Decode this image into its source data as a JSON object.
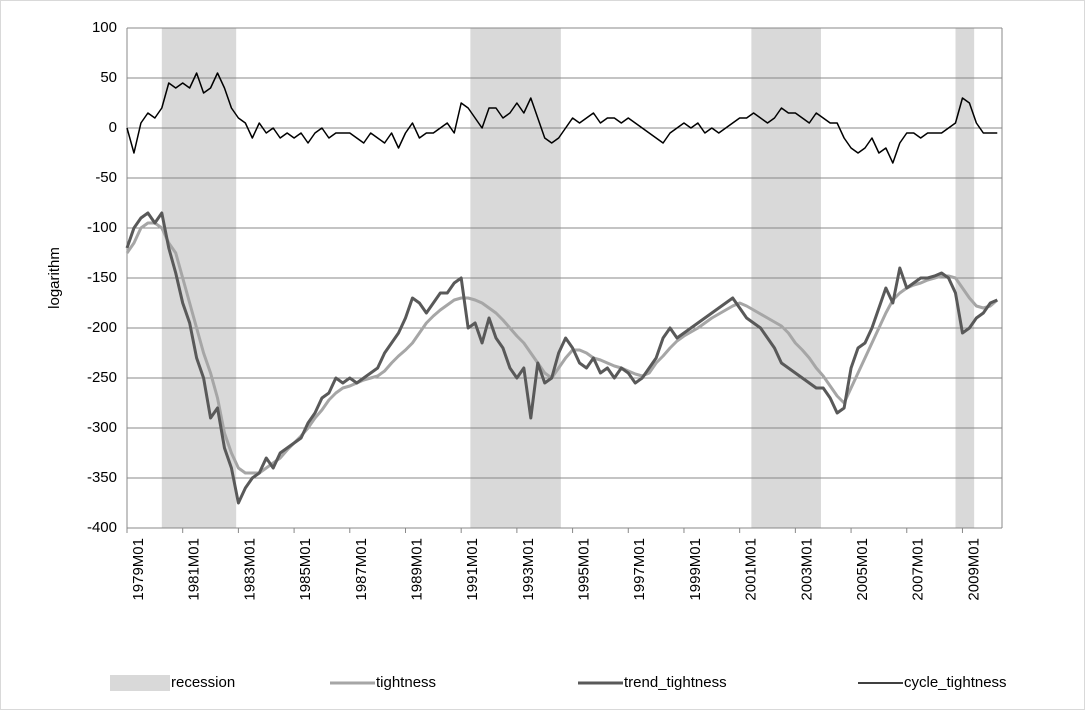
{
  "chart_data": {
    "type": "line",
    "y_label": "logarithm",
    "xlim": [
      1979,
      2010.42
    ],
    "ylim": [
      -400,
      100
    ],
    "yticks": [
      -400,
      -350,
      -300,
      -250,
      -200,
      -150,
      -100,
      -50,
      0,
      50,
      100
    ],
    "xticks": [
      {
        "value": 1979,
        "label": "1979M01"
      },
      {
        "value": 1981,
        "label": "1981M01"
      },
      {
        "value": 1983,
        "label": "1983M01"
      },
      {
        "value": 1985,
        "label": "1985M01"
      },
      {
        "value": 1987,
        "label": "1987M01"
      },
      {
        "value": 1989,
        "label": "1989M01"
      },
      {
        "value": 1991,
        "label": "1991M01"
      },
      {
        "value": 1993,
        "label": "1993M01"
      },
      {
        "value": 1995,
        "label": "1995M01"
      },
      {
        "value": 1997,
        "label": "1997M01"
      },
      {
        "value": 1999,
        "label": "1999M01"
      },
      {
        "value": 2001,
        "label": "2001M01"
      },
      {
        "value": 2003,
        "label": "2003M01"
      },
      {
        "value": 2005,
        "label": "2005M01"
      },
      {
        "value": 2007,
        "label": "2007M01"
      },
      {
        "value": 2009,
        "label": "2009M01"
      }
    ],
    "grid": true,
    "legend": "bottom",
    "recession": {
      "name": "recession",
      "color": "#d9d9d9",
      "periods": [
        [
          1980.25,
          1982.92
        ],
        [
          1991.33,
          1994.58
        ],
        [
          2001.42,
          2003.92
        ],
        [
          2008.75,
          2009.42
        ]
      ]
    },
    "x": [
      1979,
      1979.25,
      1979.5,
      1979.75,
      1980,
      1980.25,
      1980.5,
      1980.75,
      1981,
      1981.25,
      1981.5,
      1981.75,
      1982,
      1982.25,
      1982.5,
      1982.75,
      1983,
      1983.25,
      1983.5,
      1983.75,
      1984,
      1984.25,
      1984.5,
      1984.75,
      1985,
      1985.25,
      1985.5,
      1985.75,
      1986,
      1986.25,
      1986.5,
      1986.75,
      1987,
      1987.25,
      1987.5,
      1987.75,
      1988,
      1988.25,
      1988.5,
      1988.75,
      1989,
      1989.25,
      1989.5,
      1989.75,
      1990,
      1990.25,
      1990.5,
      1990.75,
      1991,
      1991.25,
      1991.5,
      1991.75,
      1992,
      1992.25,
      1992.5,
      1992.75,
      1993,
      1993.25,
      1993.5,
      1993.75,
      1994,
      1994.25,
      1994.5,
      1994.75,
      1995,
      1995.25,
      1995.5,
      1995.75,
      1996,
      1996.25,
      1996.5,
      1996.75,
      1997,
      1997.25,
      1997.5,
      1997.75,
      1998,
      1998.25,
      1998.5,
      1998.75,
      1999,
      1999.25,
      1999.5,
      1999.75,
      2000,
      2000.25,
      2000.5,
      2000.75,
      2001,
      2001.25,
      2001.5,
      2001.75,
      2002,
      2002.25,
      2002.5,
      2002.75,
      2003,
      2003.25,
      2003.5,
      2003.75,
      2004,
      2004.25,
      2004.5,
      2004.75,
      2005,
      2005.25,
      2005.5,
      2005.75,
      2006,
      2006.25,
      2006.5,
      2006.75,
      2007,
      2007.25,
      2007.5,
      2007.75,
      2008,
      2008.25,
      2008.5,
      2008.75,
      2009,
      2009.25,
      2009.5,
      2009.75,
      2010,
      2010.25
    ],
    "series": [
      {
        "name": "tightness",
        "color": "#a6a6a6",
        "width": 3,
        "values": [
          -125,
          -115,
          -100,
          -95,
          -95,
          -100,
          -115,
          -125,
          -150,
          -175,
          -200,
          -225,
          -245,
          -270,
          -305,
          -325,
          -340,
          -345,
          -345,
          -345,
          -340,
          -335,
          -330,
          -322,
          -315,
          -308,
          -300,
          -290,
          -282,
          -272,
          -265,
          -260,
          -258,
          -255,
          -252,
          -250,
          -248,
          -243,
          -235,
          -228,
          -222,
          -215,
          -205,
          -195,
          -188,
          -182,
          -177,
          -172,
          -170,
          -170,
          -172,
          -175,
          -180,
          -185,
          -192,
          -200,
          -208,
          -215,
          -225,
          -235,
          -245,
          -250,
          -240,
          -230,
          -222,
          -222,
          -225,
          -230,
          -232,
          -235,
          -238,
          -240,
          -243,
          -246,
          -248,
          -245,
          -235,
          -228,
          -220,
          -213,
          -208,
          -204,
          -200,
          -195,
          -190,
          -186,
          -182,
          -178,
          -175,
          -178,
          -182,
          -186,
          -190,
          -194,
          -198,
          -205,
          -215,
          -222,
          -230,
          -240,
          -248,
          -258,
          -268,
          -275,
          -260,
          -245,
          -230,
          -215,
          -200,
          -185,
          -172,
          -165,
          -160,
          -157,
          -155,
          -152,
          -150,
          -148,
          -148,
          -150,
          -160,
          -170,
          -178,
          -180,
          -178,
          -172
        ]
      },
      {
        "name": "trend_tightness",
        "color": "#595959",
        "width": 3,
        "values": [
          -120,
          -100,
          -90,
          -85,
          -95,
          -85,
          -120,
          -145,
          -175,
          -195,
          -230,
          -250,
          -290,
          -280,
          -320,
          -340,
          -375,
          -360,
          -350,
          -345,
          -330,
          -340,
          -325,
          -320,
          -315,
          -310,
          -295,
          -285,
          -270,
          -265,
          -250,
          -255,
          -250,
          -255,
          -250,
          -245,
          -240,
          -225,
          -215,
          -205,
          -190,
          -170,
          -175,
          -185,
          -175,
          -165,
          -165,
          -155,
          -150,
          -200,
          -195,
          -215,
          -190,
          -210,
          -220,
          -240,
          -250,
          -240,
          -290,
          -235,
          -255,
          -250,
          -225,
          -210,
          -220,
          -235,
          -240,
          -230,
          -245,
          -240,
          -250,
          -240,
          -245,
          -255,
          -250,
          -240,
          -230,
          -210,
          -200,
          -210,
          -205,
          -200,
          -195,
          -190,
          -185,
          -180,
          -175,
          -170,
          -180,
          -190,
          -195,
          -200,
          -210,
          -220,
          -235,
          -240,
          -245,
          -250,
          -255,
          -260,
          -260,
          -270,
          -285,
          -280,
          -240,
          -220,
          -215,
          -200,
          -180,
          -160,
          -175,
          -140,
          -160,
          -155,
          -150,
          -150,
          -148,
          -145,
          -150,
          -165,
          -205,
          -200,
          -190,
          -185,
          -175,
          -172
        ]
      },
      {
        "name": "cycle_tightness",
        "color": "#000000",
        "width": 1.5,
        "values": [
          0,
          -25,
          5,
          15,
          10,
          20,
          45,
          40,
          45,
          40,
          55,
          35,
          40,
          55,
          40,
          20,
          10,
          5,
          -10,
          5,
          -5,
          0,
          -10,
          -5,
          -10,
          -5,
          -15,
          -5,
          0,
          -10,
          -5,
          -5,
          -5,
          -10,
          -15,
          -5,
          -10,
          -15,
          -5,
          -20,
          -5,
          5,
          -10,
          -5,
          -5,
          0,
          5,
          -5,
          25,
          20,
          10,
          0,
          20,
          20,
          10,
          15,
          25,
          15,
          30,
          10,
          -10,
          -15,
          -10,
          0,
          10,
          5,
          10,
          15,
          5,
          10,
          10,
          5,
          10,
          5,
          0,
          -5,
          -10,
          -15,
          -5,
          0,
          5,
          0,
          5,
          -5,
          0,
          -5,
          0,
          5,
          10,
          10,
          15,
          10,
          5,
          10,
          20,
          15,
          15,
          10,
          5,
          15,
          10,
          5,
          5,
          -10,
          -20,
          -25,
          -20,
          -10,
          -25,
          -20,
          -35,
          -15,
          -5,
          -5,
          -10,
          -5,
          -5,
          -5,
          0,
          5,
          30,
          25,
          5,
          -5,
          -5,
          -5
        ]
      }
    ]
  }
}
